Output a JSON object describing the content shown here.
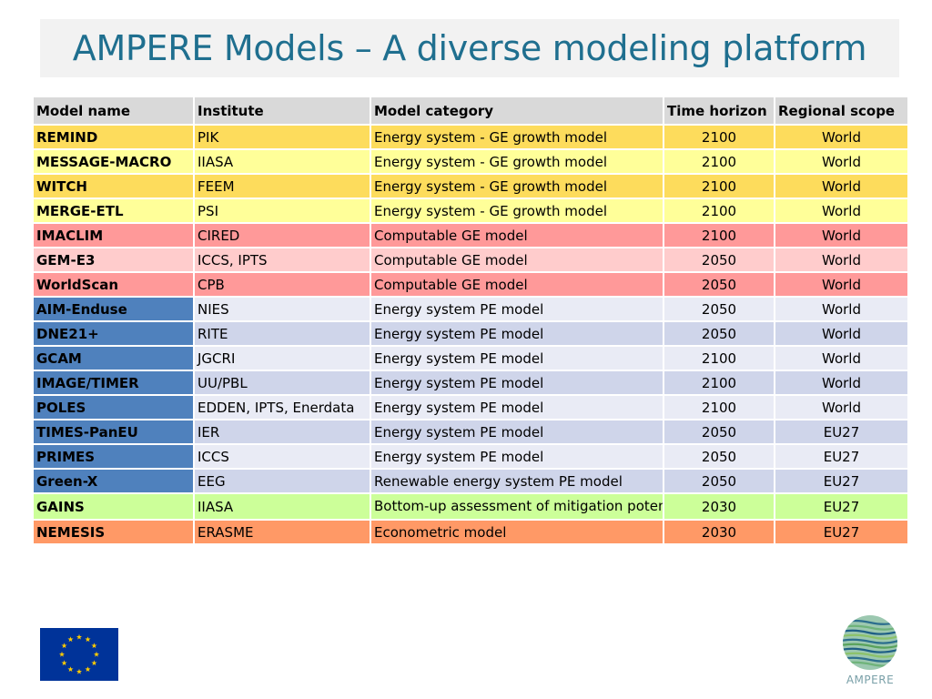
{
  "title": "AMPERE Models – A diverse modeling platform",
  "table": {
    "headers": [
      "Model name",
      "Institute",
      "Model category",
      "Time horizon",
      "Regional scope"
    ],
    "rows": [
      {
        "name": "REMIND",
        "institute": "PIK",
        "category": "Energy system - GE growth model",
        "horizon": "2100",
        "scope": "World",
        "group": "ge-a"
      },
      {
        "name": "MESSAGE-MACRO",
        "institute": "IIASA",
        "category": "Energy system - GE growth model",
        "horizon": "2100",
        "scope": "World",
        "group": "ge-b"
      },
      {
        "name": "WITCH",
        "institute": "FEEM",
        "category": "Energy system - GE growth model",
        "horizon": "2100",
        "scope": "World",
        "group": "ge-a"
      },
      {
        "name": "MERGE-ETL",
        "institute": "PSI",
        "category": "Energy system - GE growth model",
        "horizon": "2100",
        "scope": "World",
        "group": "ge-b"
      },
      {
        "name": "IMACLIM",
        "institute": "CIRED",
        "category": "Computable GE model",
        "horizon": "2100",
        "scope": "World",
        "group": "cge-a"
      },
      {
        "name": "GEM-E3",
        "institute": "ICCS, IPTS",
        "category": "Computable GE model",
        "horizon": "2050",
        "scope": "World",
        "group": "cge-b"
      },
      {
        "name": "WorldScan",
        "institute": "CPB",
        "category": "Computable GE model",
        "horizon": "2050",
        "scope": "World",
        "group": "cge-a"
      },
      {
        "name": "AIM-Enduse",
        "institute": "NIES",
        "category": "Energy system PE model",
        "horizon": "2050",
        "scope": "World",
        "group": "pe-a"
      },
      {
        "name": "DNE21+",
        "institute": "RITE",
        "category": "Energy system PE model",
        "horizon": "2050",
        "scope": "World",
        "group": "pe-b"
      },
      {
        "name": "GCAM",
        "institute": "JGCRI",
        "category": "Energy system PE model",
        "horizon": "2100",
        "scope": "World",
        "group": "pe-a"
      },
      {
        "name": "IMAGE/TIMER",
        "institute": "UU/PBL",
        "category": "Energy system PE model",
        "horizon": "2100",
        "scope": "World",
        "group": "pe-b"
      },
      {
        "name": "POLES",
        "institute": "EDDEN, IPTS, Enerdata",
        "category": "Energy system PE model",
        "horizon": "2100",
        "scope": "World",
        "group": "pe-a"
      },
      {
        "name": "TIMES-PanEU",
        "institute": "IER",
        "category": "Energy system PE model",
        "horizon": "2050",
        "scope": "EU27",
        "group": "pe-b"
      },
      {
        "name": "PRIMES",
        "institute": "ICCS",
        "category": "Energy system PE model",
        "horizon": "2050",
        "scope": "EU27",
        "group": "pe-a"
      },
      {
        "name": "Green-X",
        "institute": "EEG",
        "category": "Renewable energy system PE model",
        "horizon": "2050",
        "scope": "EU27",
        "group": "pe-b"
      },
      {
        "name": "GAINS",
        "institute": "IIASA",
        "category": "Bottom-up assessment of mitigation potentials, costs and co-benefits",
        "horizon": "2030",
        "scope": "EU27",
        "group": "bu",
        "wrap": true
      },
      {
        "name": "NEMESIS",
        "institute": "ERASME",
        "category": "Econometric model",
        "horizon": "2030",
        "scope": "EU27",
        "group": "eco"
      }
    ]
  },
  "logos": {
    "eu_flag": "eu-flag-icon",
    "ampere": {
      "icon": "ampere-globe-icon",
      "label": "AMPERE"
    }
  },
  "colors": {
    "title": "#1f6f8f",
    "header": "#d9d9d9",
    "ge_dark": "#fddc5c",
    "ge_light": "#ffff99",
    "cge_dark": "#ff9999",
    "cge_light": "#ffcccc",
    "pe_name": "#4f81bd",
    "pe_dark": "#cfd5ea",
    "pe_light": "#e9ebf5",
    "bottom_up": "#ccff99",
    "econometric": "#ff9966"
  }
}
